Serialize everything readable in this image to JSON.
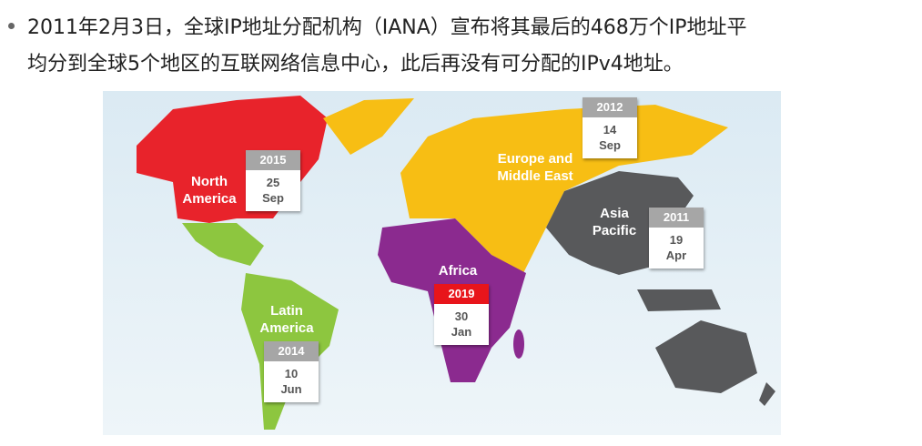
{
  "bullet": {
    "lines": [
      "2011年2月3日，全球IP地址分配机构（IANA）宣布将其最后的468万个IP地址平",
      "均分到全球5个地区的互联网络信息中心，此后再没有可分配的IPv4地址。"
    ]
  },
  "map": {
    "regions": [
      {
        "name": "North America",
        "year": 2015,
        "day": 25,
        "month": "Sep",
        "badge_color": "#a6a6a6"
      },
      {
        "name": "Europe and Middle East",
        "year": 2012,
        "day": 14,
        "month": "Sep",
        "badge_color": "#a6a6a6"
      },
      {
        "name": "Asia Pacific",
        "year": 2011,
        "day": 19,
        "month": "Apr",
        "badge_color": "#a6a6a6"
      },
      {
        "name": "Africa",
        "year": 2019,
        "day": 30,
        "month": "Jan",
        "badge_color": "#e8151b"
      },
      {
        "name": "Latin America",
        "year": 2014,
        "day": 10,
        "month": "Jun",
        "badge_color": "#a6a6a6"
      }
    ]
  }
}
